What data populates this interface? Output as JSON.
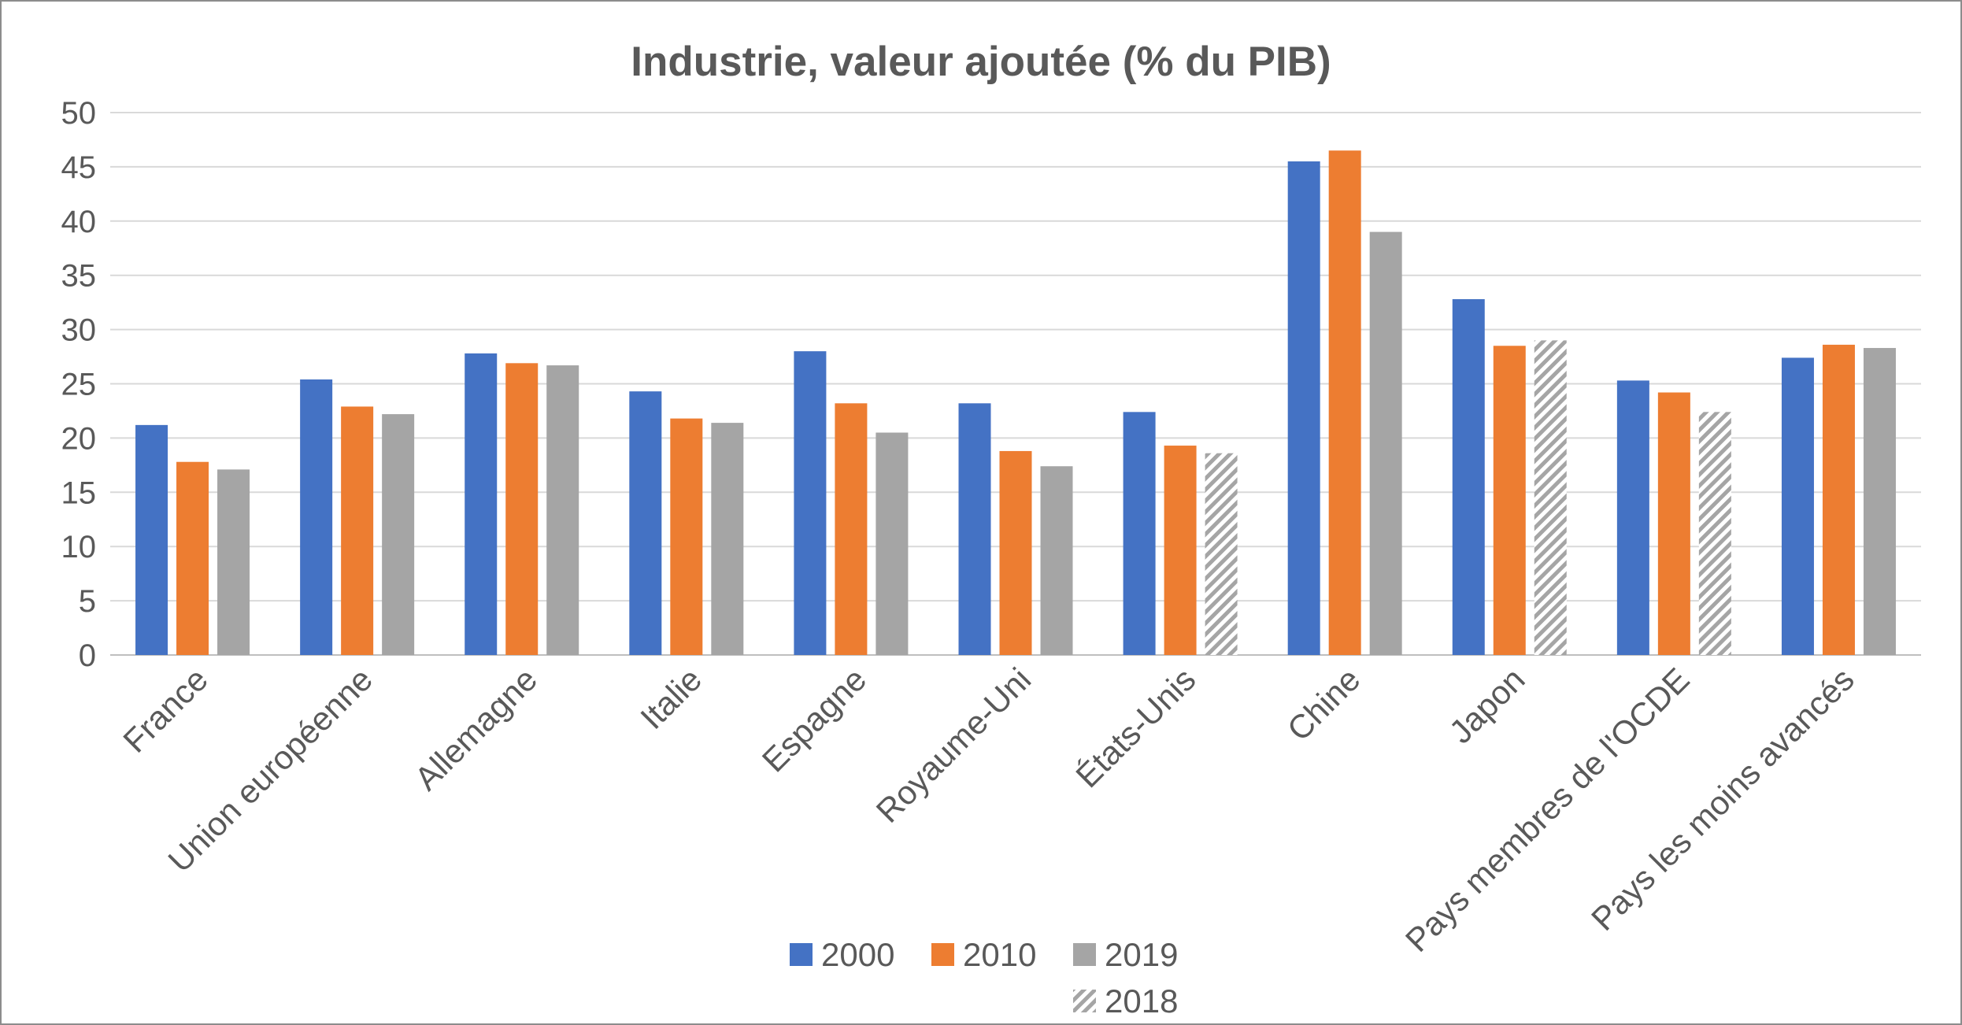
{
  "chart_data": {
    "type": "bar",
    "title": "Industrie, valeur ajoutée (% du PIB)",
    "xlabel": "",
    "ylabel": "",
    "ylim": [
      0,
      50
    ],
    "yticks": [
      0,
      5,
      10,
      15,
      20,
      25,
      30,
      35,
      40,
      45,
      50
    ],
    "grid": true,
    "legend_position": "bottom",
    "categories": [
      "France",
      "Union européenne",
      "Allemagne",
      "Italie",
      "Espagne",
      "Royaume-Uni",
      "États-Unis",
      "Chine",
      "Japon",
      "Pays membres de l'OCDE",
      "Pays les moins avancés"
    ],
    "series": [
      {
        "name": "2000",
        "color": "#4472c4",
        "values": [
          21.2,
          25.4,
          27.8,
          24.3,
          28.0,
          23.2,
          22.4,
          45.5,
          32.8,
          25.3,
          27.4
        ]
      },
      {
        "name": "2010",
        "color": "#ed7d31",
        "values": [
          17.8,
          22.9,
          26.9,
          21.8,
          23.2,
          18.8,
          19.3,
          46.5,
          28.5,
          24.2,
          28.6
        ]
      },
      {
        "name": "2019",
        "color": "#a5a5a5",
        "values": [
          17.1,
          22.2,
          26.7,
          21.4,
          20.5,
          17.4,
          null,
          39.0,
          null,
          null,
          28.3
        ]
      },
      {
        "name": "2018",
        "color": "#a5a5a5",
        "pattern": "hatched",
        "values": [
          null,
          null,
          null,
          null,
          null,
          null,
          18.6,
          null,
          29.0,
          22.4,
          null
        ]
      }
    ]
  }
}
